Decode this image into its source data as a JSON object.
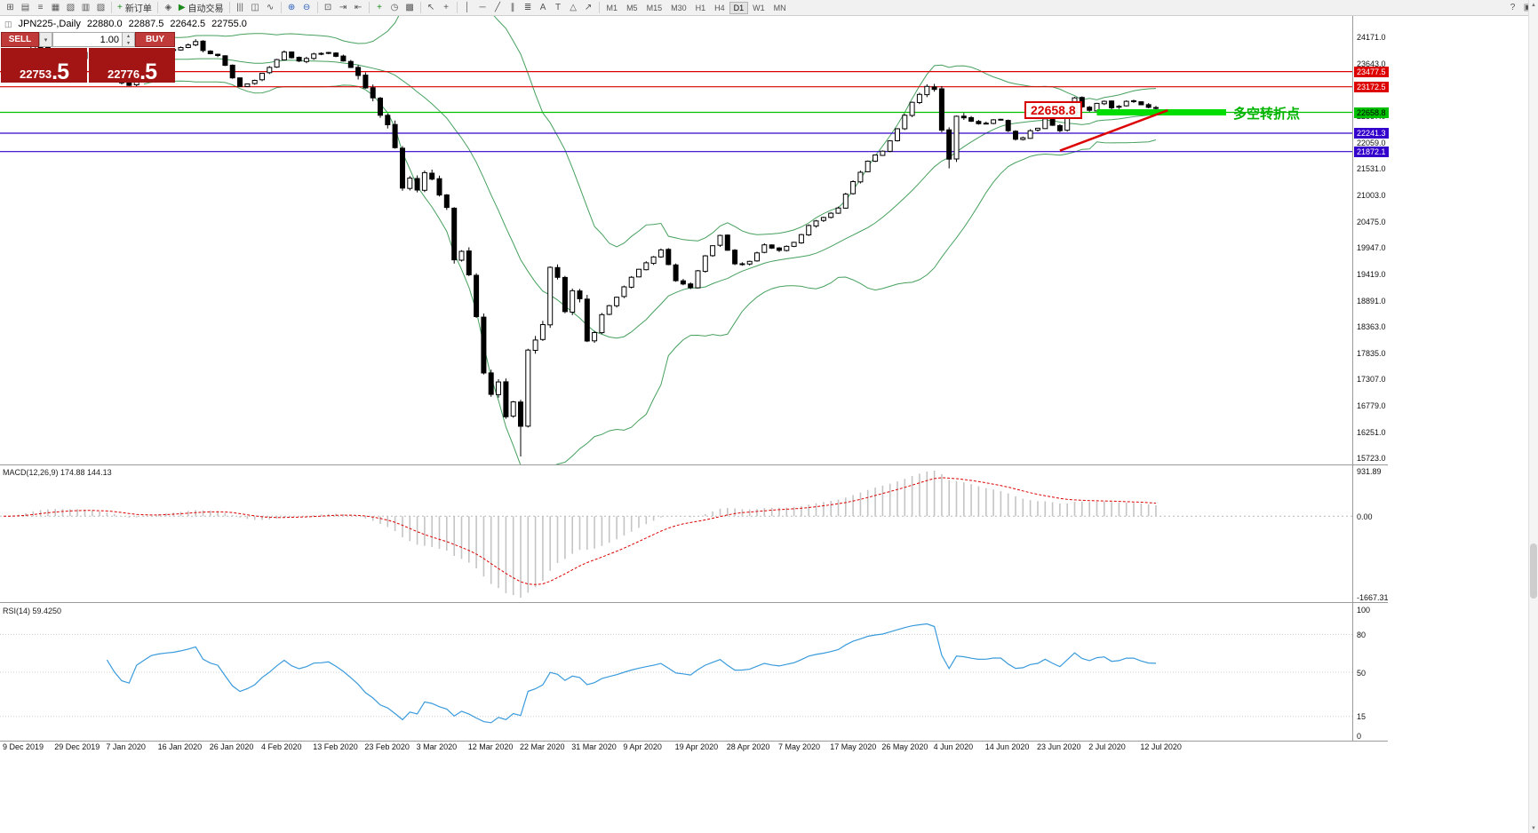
{
  "window": {
    "accent_red": "#dd0000",
    "accent_green": "#00c000",
    "accent_blue": "#3300cc"
  },
  "icons": {
    "chart": "◫",
    "dropdown": "▾",
    "spin_up": "▴",
    "spin_down": "▾",
    "scroll_up": "▲",
    "scroll_down": "▼"
  },
  "toolbar": {
    "groups": [
      {
        "items": [
          {
            "name": "new-chart-button",
            "glyph": "⊞"
          },
          {
            "name": "profiles-button",
            "glyph": "▤"
          },
          {
            "name": "market-watch-button",
            "glyph": "≡"
          },
          {
            "name": "data-window-button",
            "glyph": "▦"
          },
          {
            "name": "navigator-button",
            "glyph": "▧"
          },
          {
            "name": "terminal-button",
            "glyph": "▥"
          },
          {
            "name": "strategy-tester-button",
            "glyph": "▨"
          }
        ]
      },
      {
        "items": [
          {
            "name": "new-order-button",
            "glyph": "+",
            "cls": "c-green",
            "label": "新订单"
          }
        ]
      },
      {
        "items": [
          {
            "name": "metaeditor-button",
            "glyph": "◈"
          },
          {
            "name": "auto-trading-button",
            "glyph": "▶",
            "cls": "c-green",
            "label": "自动交易"
          }
        ]
      },
      {
        "items": [
          {
            "name": "bar-chart-type-button",
            "glyph": "|||"
          },
          {
            "name": "candlestick-type-button",
            "glyph": "◫"
          },
          {
            "name": "line-chart-type-button",
            "glyph": "∿"
          }
        ]
      },
      {
        "items": [
          {
            "name": "zoom-in-button",
            "glyph": "⊕",
            "cls": "c-blue"
          },
          {
            "name": "zoom-out-button",
            "glyph": "⊖",
            "cls": "c-blue"
          }
        ]
      },
      {
        "items": [
          {
            "name": "tile-windows-button",
            "glyph": "⊡"
          },
          {
            "name": "auto-scroll-button",
            "glyph": "⇥"
          },
          {
            "name": "chart-shift-button",
            "glyph": "⇤"
          }
        ]
      },
      {
        "items": [
          {
            "name": "indicators-button",
            "glyph": "+",
            "cls": "c-green"
          },
          {
            "name": "periods-button",
            "glyph": "◷"
          },
          {
            "name": "templates-button",
            "glyph": "▩"
          }
        ]
      },
      {
        "items": [
          {
            "name": "cursor-button",
            "glyph": "↖"
          },
          {
            "name": "crosshair-button",
            "glyph": "+"
          }
        ]
      },
      {
        "items": [
          {
            "name": "vertical-line-button",
            "glyph": "│"
          },
          {
            "name": "horizontal-line-button",
            "glyph": "─"
          },
          {
            "name": "trendline-button",
            "glyph": "╱"
          },
          {
            "name": "channel-button",
            "glyph": "∥"
          },
          {
            "name": "fibonacci-button",
            "glyph": "≣"
          },
          {
            "name": "text-button",
            "glyph": "A"
          },
          {
            "name": "label-button",
            "glyph": "T"
          },
          {
            "name": "shapes-button",
            "glyph": "△"
          },
          {
            "name": "arrow-tool-button",
            "glyph": "↗"
          }
        ]
      }
    ],
    "timeframes": [
      "M1",
      "M5",
      "M15",
      "M30",
      "H1",
      "H4",
      "D1",
      "W1",
      "MN"
    ],
    "active_timeframe": "D1",
    "right_items": [
      {
        "name": "help-icon",
        "glyph": "?"
      },
      {
        "name": "layout-icon",
        "glyph": "▣"
      }
    ]
  },
  "chart_header": {
    "symbol_period": "JPN225-,Daily",
    "open": "22880.0",
    "high": "22887.5",
    "low": "22642.5",
    "close": "22755.0"
  },
  "trade_panel": {
    "sell_label": "SELL",
    "buy_label": "BUY",
    "volume_value": "1.00",
    "sell_price_main": "22753",
    "sell_price_frac": ".5",
    "buy_price_main": "22776",
    "buy_price_frac": ".5"
  },
  "annotations": {
    "level_callout": "22658.8",
    "turning_point": "多空转折点"
  },
  "macd": {
    "label": "MACD(12,26,9) 174.88 144.13",
    "axis_top": "931.89",
    "axis_zero": "0.00",
    "axis_bottom": "-1667.31"
  },
  "rsi": {
    "label": "RSI(14) 59.4250",
    "axis_labels": [
      "100",
      "80",
      "50",
      "15",
      "0"
    ]
  },
  "chart_data": {
    "type": "candlestick",
    "title": "JPN225- Daily",
    "days": 157,
    "ylim": [
      15630,
      24450
    ],
    "y_ticks": [
      "24171.0",
      "23643.0",
      "23115.0",
      "22587.0",
      "22059.0",
      "21531.0",
      "21003.0",
      "20475.0",
      "19947.0",
      "19419.0",
      "18891.0",
      "18363.0",
      "17835.0",
      "17307.0",
      "16779.0",
      "16251.0",
      "15723.0"
    ],
    "x_labels": [
      "9 Dec 2019",
      "29 Dec 2019",
      "7 Jan 2020",
      "16 Jan 2020",
      "26 Jan 2020",
      "4 Feb 2020",
      "13 Feb 2020",
      "23 Feb 2020",
      "3 Mar 2020",
      "12 Mar 2020",
      "22 Mar 2020",
      "31 Mar 2020",
      "9 Apr 2020",
      "19 Apr 2020",
      "28 Apr 2020",
      "7 May 2020",
      "17 May 2020",
      "26 May 2020",
      "4 Jun 2020",
      "14 Jun 2020",
      "23 Jun 2020",
      "2 Jul 2020",
      "12 Jul 2020"
    ],
    "price_path": [
      [
        0,
        23400
      ],
      [
        2,
        23650
      ],
      [
        4,
        23980
      ],
      [
        6,
        23900
      ],
      [
        8,
        23820
      ],
      [
        10,
        23850
      ],
      [
        12,
        23660
      ],
      [
        14,
        23600
      ],
      [
        16,
        23250
      ],
      [
        17,
        23200
      ],
      [
        18,
        23550
      ],
      [
        20,
        23820
      ],
      [
        22,
        23900
      ],
      [
        24,
        23960
      ],
      [
        26,
        24080
      ],
      [
        27,
        23900
      ],
      [
        29,
        23800
      ],
      [
        31,
        23350
      ],
      [
        32,
        23180
      ],
      [
        34,
        23300
      ],
      [
        36,
        23560
      ],
      [
        38,
        23870
      ],
      [
        40,
        23690
      ],
      [
        42,
        23830
      ],
      [
        44,
        23860
      ],
      [
        46,
        23690
      ],
      [
        48,
        23400
      ],
      [
        50,
        22950
      ],
      [
        51,
        22600
      ],
      [
        52,
        22410
      ],
      [
        53,
        21950
      ],
      [
        54,
        21140
      ],
      [
        55,
        21340
      ],
      [
        56,
        21100
      ],
      [
        57,
        21450
      ],
      [
        58,
        21320
      ],
      [
        59,
        21000
      ],
      [
        60,
        20750
      ],
      [
        61,
        19700
      ],
      [
        62,
        19870
      ],
      [
        63,
        19400
      ],
      [
        64,
        18560
      ],
      [
        65,
        17430
      ],
      [
        66,
        17000
      ],
      [
        67,
        17250
      ],
      [
        68,
        16550
      ],
      [
        69,
        16850
      ],
      [
        70,
        16360
      ],
      [
        71,
        17890
      ],
      [
        72,
        18090
      ],
      [
        73,
        18400
      ],
      [
        74,
        19550
      ],
      [
        75,
        19350
      ],
      [
        76,
        18660
      ],
      [
        77,
        19080
      ],
      [
        78,
        18920
      ],
      [
        79,
        18070
      ],
      [
        80,
        18240
      ],
      [
        81,
        18600
      ],
      [
        83,
        18950
      ],
      [
        85,
        19350
      ],
      [
        87,
        19640
      ],
      [
        89,
        19900
      ],
      [
        91,
        19280
      ],
      [
        93,
        19140
      ],
      [
        95,
        19780
      ],
      [
        97,
        20190
      ],
      [
        99,
        19620
      ],
      [
        101,
        19670
      ],
      [
        103,
        20000
      ],
      [
        105,
        19890
      ],
      [
        107,
        20050
      ],
      [
        109,
        20390
      ],
      [
        111,
        20550
      ],
      [
        113,
        20740
      ],
      [
        115,
        21270
      ],
      [
        117,
        21680
      ],
      [
        119,
        21880
      ],
      [
        121,
        22330
      ],
      [
        123,
        22860
      ],
      [
        125,
        23180
      ],
      [
        126,
        23120
      ],
      [
        127,
        22300
      ],
      [
        128,
        21720
      ],
      [
        129,
        22580
      ],
      [
        130,
        22550
      ],
      [
        131,
        22480
      ],
      [
        132,
        22430
      ],
      [
        133,
        22440
      ],
      [
        134,
        22510
      ],
      [
        135,
        22510
      ],
      [
        136,
        22290
      ],
      [
        137,
        22120
      ],
      [
        138,
        22150
      ],
      [
        139,
        22290
      ],
      [
        140,
        22340
      ],
      [
        141,
        22530
      ],
      [
        142,
        22400
      ],
      [
        143,
        22290
      ],
      [
        144,
        22590
      ],
      [
        145,
        22950
      ],
      [
        146,
        22770
      ],
      [
        147,
        22700
      ],
      [
        148,
        22840
      ],
      [
        149,
        22880
      ],
      [
        150,
        22750
      ],
      [
        151,
        22780
      ],
      [
        152,
        22880
      ],
      [
        153,
        22880
      ],
      [
        154,
        22810
      ],
      [
        155,
        22760
      ],
      [
        156,
        22755
      ]
    ],
    "forced": {
      "26": {
        "high": 24125
      },
      "70": {
        "low": 15755
      },
      "128": {
        "low": 21535
      }
    },
    "levels": [
      {
        "price": 23477.5,
        "label": "23477.5",
        "color": "#dd0000",
        "text": "#ffffff"
      },
      {
        "price": 23172.5,
        "label": "23172.5",
        "color": "#dd0000",
        "text": "#ffffff"
      },
      {
        "price": 22658.8,
        "label": "22658.8",
        "color": "#00c000",
        "text": "#000000"
      },
      {
        "price": 22241.3,
        "label": "22241.3",
        "color": "#3300cc",
        "text": "#ffffff"
      },
      {
        "price": 21872.1,
        "label": "21872.1",
        "color": "#3300cc",
        "text": "#ffffff"
      }
    ],
    "band": {
      "price": 22658.8,
      "from_day": 148,
      "to_day": 165.5,
      "color": "#00dd00"
    },
    "trendline": {
      "from": [
        143,
        21890
      ],
      "to": [
        157.6,
        22700
      ],
      "color": "#dd0000"
    },
    "indicators": {
      "bollinger": {
        "period": 20,
        "deviation": 2
      },
      "macd": {
        "fast": 12,
        "slow": 26,
        "signal": 9,
        "current_macd": 174.88,
        "current_signal": 144.13,
        "scale": [
          -1667.31,
          931.89
        ]
      },
      "rsi": {
        "period": 14,
        "current": 59.425,
        "levels": [
          80,
          50,
          15
        ]
      }
    }
  }
}
